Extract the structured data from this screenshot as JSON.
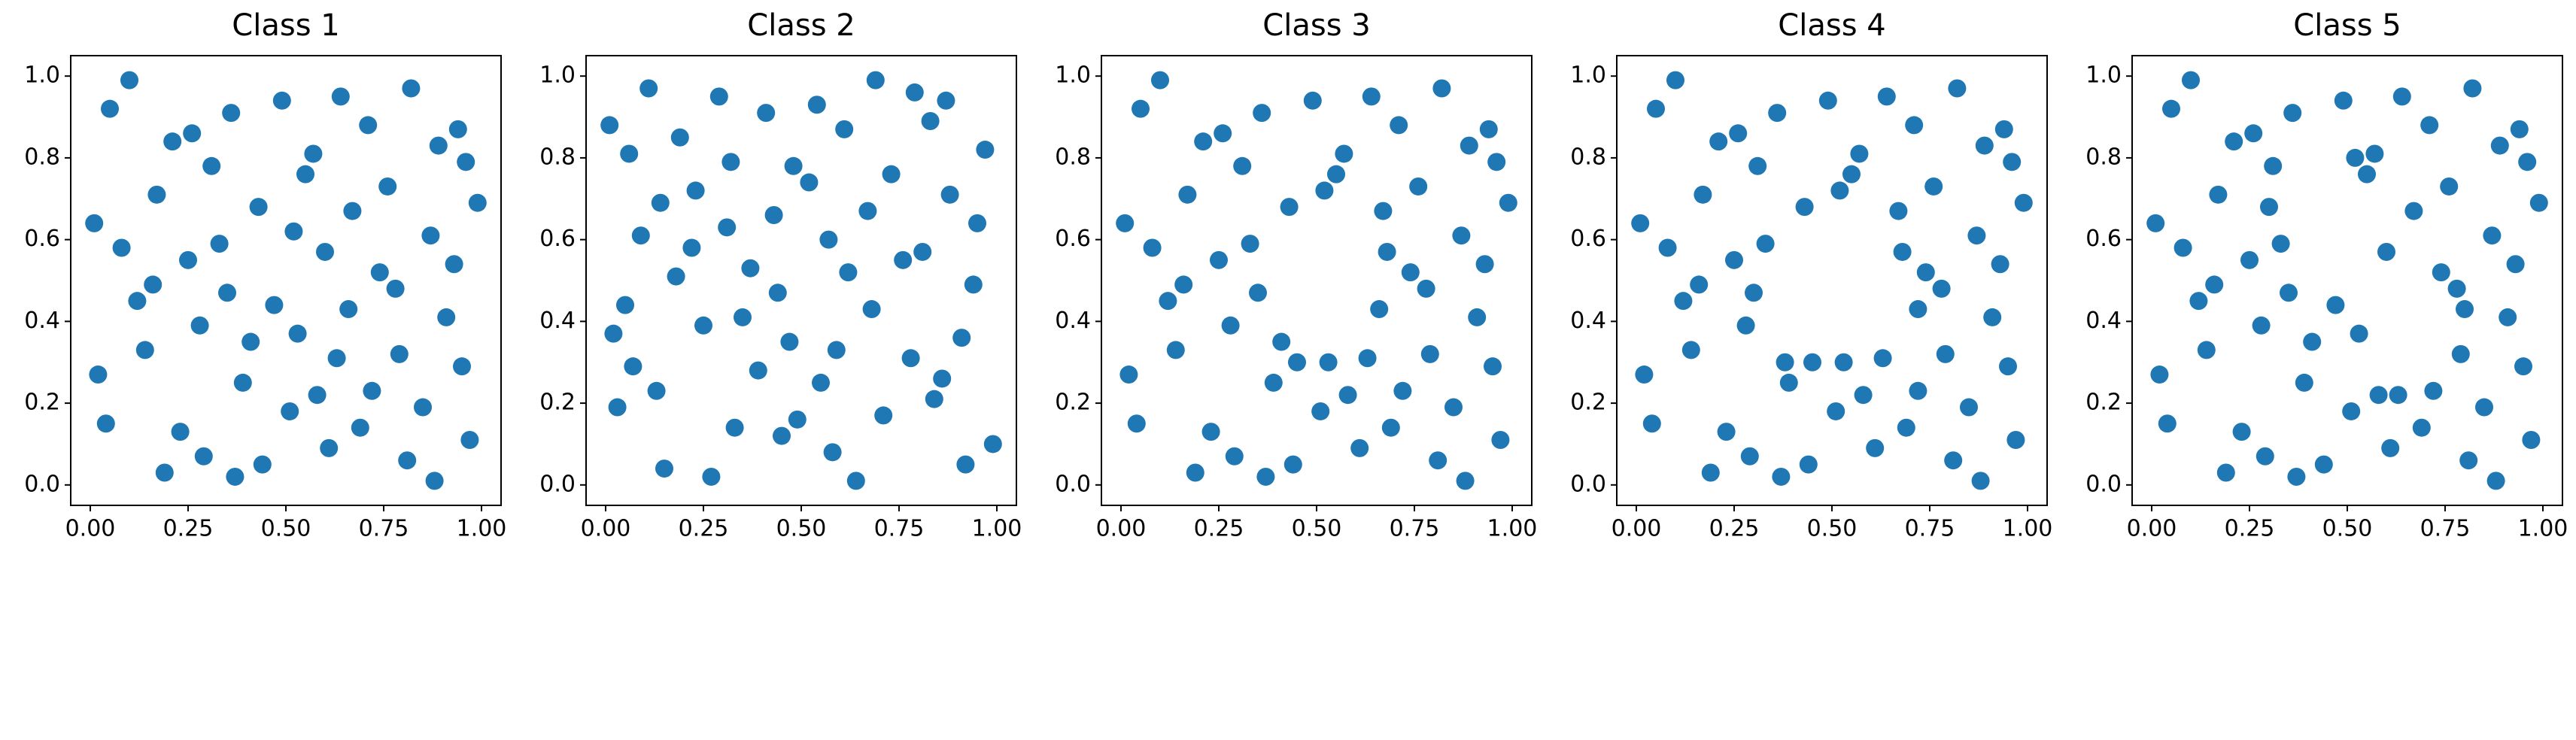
{
  "chart_data": [
    {
      "type": "scatter",
      "title": "Class 1",
      "color": "#1f77b4",
      "x": [
        0.05,
        0.12,
        0.23,
        0.31,
        0.44,
        0.52,
        0.63,
        0.71,
        0.85,
        0.93,
        0.02,
        0.17,
        0.28,
        0.37,
        0.49,
        0.58,
        0.67,
        0.78,
        0.89,
        0.97,
        0.08,
        0.19,
        0.26,
        0.41,
        0.55,
        0.61,
        0.74,
        0.82,
        0.91,
        0.99,
        0.04,
        0.14,
        0.33,
        0.39,
        0.47,
        0.57,
        0.69,
        0.76,
        0.87,
        0.95,
        0.1,
        0.21,
        0.29,
        0.35,
        0.51,
        0.64,
        0.72,
        0.81,
        0.94,
        0.01,
        0.16,
        0.25,
        0.43,
        0.53,
        0.66,
        0.79,
        0.88,
        0.96,
        0.36,
        0.6
      ],
      "y": [
        0.92,
        0.45,
        0.13,
        0.78,
        0.05,
        0.62,
        0.31,
        0.88,
        0.19,
        0.54,
        0.27,
        0.71,
        0.39,
        0.02,
        0.94,
        0.22,
        0.67,
        0.48,
        0.83,
        0.11,
        0.58,
        0.03,
        0.86,
        0.35,
        0.76,
        0.09,
        0.52,
        0.97,
        0.41,
        0.69,
        0.15,
        0.33,
        0.59,
        0.25,
        0.44,
        0.81,
        0.14,
        0.73,
        0.61,
        0.29,
        0.99,
        0.84,
        0.07,
        0.47,
        0.18,
        0.95,
        0.23,
        0.06,
        0.87,
        0.64,
        0.49,
        0.55,
        0.68,
        0.37,
        0.43,
        0.32,
        0.01,
        0.79,
        0.91,
        0.57
      ],
      "xlim": [
        -0.05,
        1.05
      ],
      "ylim": [
        -0.05,
        1.05
      ],
      "xticks": [
        {
          "value": 0,
          "label": "0.00"
        },
        0.25,
        {
          "value": 0.5,
          "label": "0.50"
        },
        0.75,
        {
          "value": 1,
          "label": "1.00"
        }
      ],
      "yticks": [
        {
          "value": 0,
          "label": "0.0"
        },
        0.2,
        0.4,
        0.6,
        0.8,
        {
          "value": 1,
          "label": "1.0"
        }
      ]
    },
    {
      "type": "scatter",
      "title": "Class 2",
      "color": "#1f77b4",
      "x": [
        0.92,
        0.45,
        0.13,
        0.78,
        0.05,
        0.62,
        0.31,
        0.88,
        0.19,
        0.54,
        0.27,
        0.71,
        0.39,
        0.02,
        0.94,
        0.22,
        0.67,
        0.48,
        0.83,
        0.11,
        0.58,
        0.03,
        0.86,
        0.35,
        0.76,
        0.09,
        0.52,
        0.97,
        0.41,
        0.69,
        0.15,
        0.33,
        0.59,
        0.25,
        0.44,
        0.81,
        0.14,
        0.73,
        0.61,
        0.29,
        0.99,
        0.84,
        0.07,
        0.47,
        0.18,
        0.95,
        0.23,
        0.06,
        0.87,
        0.64,
        0.49,
        0.55,
        0.68,
        0.37,
        0.43,
        0.32,
        0.01,
        0.79,
        0.91,
        0.57
      ],
      "y": [
        0.05,
        0.12,
        0.23,
        0.31,
        0.44,
        0.52,
        0.63,
        0.71,
        0.85,
        0.93,
        0.02,
        0.17,
        0.28,
        0.37,
        0.49,
        0.58,
        0.67,
        0.78,
        0.89,
        0.97,
        0.08,
        0.19,
        0.26,
        0.41,
        0.55,
        0.61,
        0.74,
        0.82,
        0.91,
        0.99,
        0.04,
        0.14,
        0.33,
        0.39,
        0.47,
        0.57,
        0.69,
        0.76,
        0.87,
        0.95,
        0.1,
        0.21,
        0.29,
        0.35,
        0.51,
        0.64,
        0.72,
        0.81,
        0.94,
        0.01,
        0.16,
        0.25,
        0.43,
        0.53,
        0.66,
        0.79,
        0.88,
        0.96,
        0.36,
        0.6
      ],
      "xlim": [
        -0.05,
        1.05
      ],
      "ylim": [
        -0.05,
        1.05
      ],
      "xticks": [
        {
          "value": 0,
          "label": "0.00"
        },
        0.25,
        {
          "value": 0.5,
          "label": "0.50"
        },
        0.75,
        {
          "value": 1,
          "label": "1.00"
        }
      ],
      "yticks": [
        {
          "value": 0,
          "label": "0.0"
        },
        0.2,
        0.4,
        0.6,
        0.8,
        {
          "value": 1,
          "label": "1.0"
        }
      ]
    },
    {
      "type": "scatter",
      "title": "Class 3",
      "color": "#1f77b4",
      "x": [
        0.05,
        0.12,
        0.23,
        0.31,
        0.44,
        0.52,
        0.63,
        0.71,
        0.85,
        0.93,
        0.02,
        0.17,
        0.28,
        0.37,
        0.49,
        0.58,
        0.67,
        0.78,
        0.89,
        0.97,
        0.08,
        0.19,
        0.26,
        0.41,
        0.55,
        0.61,
        0.74,
        0.82,
        0.91,
        0.99,
        0.04,
        0.14,
        0.33,
        0.39,
        0.45,
        0.57,
        0.69,
        0.76,
        0.87,
        0.95,
        0.1,
        0.21,
        0.29,
        0.35,
        0.51,
        0.64,
        0.72,
        0.81,
        0.94,
        0.01,
        0.16,
        0.25,
        0.43,
        0.53,
        0.66,
        0.79,
        0.88,
        0.96,
        0.36,
        0.68
      ],
      "y": [
        0.92,
        0.45,
        0.13,
        0.78,
        0.05,
        0.72,
        0.31,
        0.88,
        0.19,
        0.54,
        0.27,
        0.71,
        0.39,
        0.02,
        0.94,
        0.22,
        0.67,
        0.48,
        0.83,
        0.11,
        0.58,
        0.03,
        0.86,
        0.35,
        0.76,
        0.09,
        0.52,
        0.97,
        0.41,
        0.69,
        0.15,
        0.33,
        0.59,
        0.25,
        0.3,
        0.81,
        0.14,
        0.73,
        0.61,
        0.29,
        0.99,
        0.84,
        0.07,
        0.47,
        0.18,
        0.95,
        0.23,
        0.06,
        0.87,
        0.64,
        0.49,
        0.55,
        0.68,
        0.3,
        0.43,
        0.32,
        0.01,
        0.79,
        0.91,
        0.57
      ],
      "xlim": [
        -0.05,
        1.05
      ],
      "ylim": [
        -0.05,
        1.05
      ],
      "xticks": [
        {
          "value": 0,
          "label": "0.00"
        },
        0.25,
        {
          "value": 0.5,
          "label": "0.50"
        },
        0.75,
        {
          "value": 1,
          "label": "1.00"
        }
      ],
      "yticks": [
        {
          "value": 0,
          "label": "0.0"
        },
        0.2,
        0.4,
        0.6,
        0.8,
        {
          "value": 1,
          "label": "1.0"
        }
      ]
    },
    {
      "type": "scatter",
      "title": "Class 4",
      "color": "#1f77b4",
      "x": [
        0.05,
        0.12,
        0.23,
        0.31,
        0.44,
        0.52,
        0.63,
        0.71,
        0.85,
        0.93,
        0.02,
        0.17,
        0.28,
        0.37,
        0.49,
        0.58,
        0.67,
        0.78,
        0.89,
        0.97,
        0.08,
        0.19,
        0.26,
        0.38,
        0.55,
        0.61,
        0.74,
        0.82,
        0.91,
        0.99,
        0.04,
        0.14,
        0.33,
        0.39,
        0.45,
        0.57,
        0.69,
        0.76,
        0.87,
        0.95,
        0.1,
        0.21,
        0.29,
        0.3,
        0.51,
        0.64,
        0.72,
        0.81,
        0.94,
        0.01,
        0.16,
        0.25,
        0.43,
        0.53,
        0.72,
        0.79,
        0.88,
        0.96,
        0.36,
        0.68
      ],
      "y": [
        0.92,
        0.45,
        0.13,
        0.78,
        0.05,
        0.72,
        0.31,
        0.88,
        0.19,
        0.54,
        0.27,
        0.71,
        0.39,
        0.02,
        0.94,
        0.22,
        0.67,
        0.48,
        0.83,
        0.11,
        0.58,
        0.03,
        0.86,
        0.3,
        0.76,
        0.09,
        0.52,
        0.97,
        0.41,
        0.69,
        0.15,
        0.33,
        0.59,
        0.25,
        0.3,
        0.81,
        0.14,
        0.73,
        0.61,
        0.29,
        0.99,
        0.84,
        0.07,
        0.47,
        0.18,
        0.95,
        0.23,
        0.06,
        0.87,
        0.64,
        0.49,
        0.55,
        0.68,
        0.3,
        0.43,
        0.32,
        0.01,
        0.79,
        0.91,
        0.57
      ],
      "xlim": [
        -0.05,
        1.05
      ],
      "ylim": [
        -0.05,
        1.05
      ],
      "xticks": [
        {
          "value": 0,
          "label": "0.00"
        },
        0.25,
        {
          "value": 0.5,
          "label": "0.50"
        },
        0.75,
        {
          "value": 1,
          "label": "1.00"
        }
      ],
      "yticks": [
        {
          "value": 0,
          "label": "0.0"
        },
        0.2,
        0.4,
        0.6,
        0.8,
        {
          "value": 1,
          "label": "1.0"
        }
      ]
    },
    {
      "type": "scatter",
      "title": "Class 5",
      "color": "#1f77b4",
      "x": [
        0.05,
        0.12,
        0.23,
        0.31,
        0.44,
        0.52,
        0.63,
        0.71,
        0.85,
        0.93,
        0.02,
        0.17,
        0.28,
        0.37,
        0.49,
        0.58,
        0.67,
        0.78,
        0.89,
        0.97,
        0.08,
        0.19,
        0.26,
        0.41,
        0.55,
        0.61,
        0.74,
        0.82,
        0.91,
        0.99,
        0.04,
        0.14,
        0.33,
        0.39,
        0.47,
        0.57,
        0.69,
        0.76,
        0.87,
        0.95,
        0.1,
        0.21,
        0.29,
        0.35,
        0.51,
        0.64,
        0.72,
        0.81,
        0.94,
        0.01,
        0.16,
        0.25,
        0.3,
        0.53,
        0.8,
        0.79,
        0.88,
        0.96,
        0.36,
        0.6
      ],
      "y": [
        0.92,
        0.45,
        0.13,
        0.78,
        0.05,
        0.8,
        0.22,
        0.88,
        0.19,
        0.54,
        0.27,
        0.71,
        0.39,
        0.02,
        0.94,
        0.22,
        0.67,
        0.48,
        0.83,
        0.11,
        0.58,
        0.03,
        0.86,
        0.35,
        0.76,
        0.09,
        0.52,
        0.97,
        0.41,
        0.69,
        0.15,
        0.33,
        0.59,
        0.25,
        0.44,
        0.81,
        0.14,
        0.73,
        0.61,
        0.29,
        0.99,
        0.84,
        0.07,
        0.47,
        0.18,
        0.95,
        0.23,
        0.06,
        0.87,
        0.64,
        0.49,
        0.55,
        0.68,
        0.37,
        0.43,
        0.32,
        0.01,
        0.79,
        0.91,
        0.57
      ],
      "xlim": [
        -0.05,
        1.05
      ],
      "ylim": [
        -0.05,
        1.05
      ],
      "xticks": [
        {
          "value": 0,
          "label": "0.00"
        },
        0.25,
        {
          "value": 0.5,
          "label": "0.50"
        },
        0.75,
        {
          "value": 1,
          "label": "1.00"
        }
      ],
      "yticks": [
        {
          "value": 0,
          "label": "0.0"
        },
        0.2,
        0.4,
        0.6,
        0.8,
        {
          "value": 1,
          "label": "1.0"
        }
      ]
    }
  ]
}
